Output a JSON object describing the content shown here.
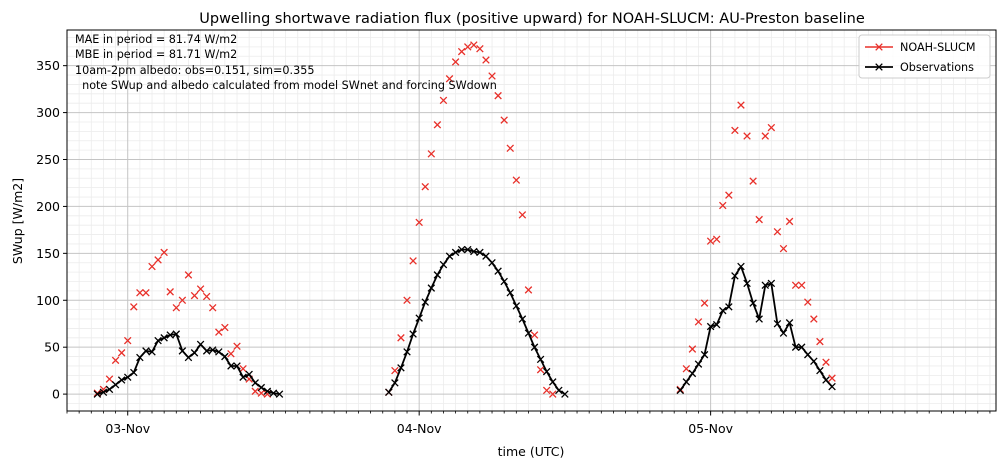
{
  "chart_data": {
    "type": "scatter",
    "title": "Upwelling shortwave radiation flux (positive upward) for NOAH-SLUCM: AU-Preston baseline",
    "xlabel": "time (UTC)",
    "ylabel": "SWup [W/m2]",
    "xlim": [
      "11-02 19:00",
      "11-05 23:30"
    ],
    "ylim": [
      -18,
      388
    ],
    "x_ticks": [
      "03-Nov",
      "04-Nov",
      "05-Nov"
    ],
    "y_ticks": [
      0,
      50,
      100,
      150,
      200,
      250,
      300,
      350
    ],
    "grid": true,
    "legend_position": "top-right",
    "annotations": [
      "MAE in period = 81.74 W/m2",
      "MBE in period = 81.71 W/m2",
      "10am-2pm albedo: obs=0.151, sim=0.355",
      "  note SWup and albedo calculated from model SWnet and forcing SWdown"
    ],
    "series": [
      {
        "name": "NOAH-SLUCM",
        "color": "#e8302a",
        "style": "markers",
        "points": [
          [
            "11-02 21:30",
            1
          ],
          [
            "11-02 22:00",
            5
          ],
          [
            "11-02 22:30",
            16
          ],
          [
            "11-02 23:00",
            36
          ],
          [
            "11-02 23:30",
            44
          ],
          [
            "11-03 00:00",
            57
          ],
          [
            "11-03 00:30",
            93
          ],
          [
            "11-03 01:00",
            108
          ],
          [
            "11-03 01:30",
            108
          ],
          [
            "11-03 02:00",
            136
          ],
          [
            "11-03 02:30",
            143
          ],
          [
            "11-03 03:00",
            151
          ],
          [
            "11-03 03:30",
            109
          ],
          [
            "11-03 04:00",
            92
          ],
          [
            "11-03 04:30",
            100
          ],
          [
            "11-03 05:00",
            127
          ],
          [
            "11-03 05:30",
            105
          ],
          [
            "11-03 06:00",
            112
          ],
          [
            "11-03 06:30",
            104
          ],
          [
            "11-03 07:00",
            92
          ],
          [
            "11-03 07:30",
            66
          ],
          [
            "11-03 08:00",
            71
          ],
          [
            "11-03 08:30",
            43
          ],
          [
            "11-03 09:00",
            51
          ],
          [
            "11-03 09:30",
            27
          ],
          [
            "11-03 10:00",
            16
          ],
          [
            "11-03 10:30",
            3
          ],
          [
            "11-03 11:00",
            1
          ],
          [
            "11-03 11:30",
            0
          ],
          [
            "11-03 21:30",
            2
          ],
          [
            "11-03 22:00",
            25
          ],
          [
            "11-03 22:30",
            60
          ],
          [
            "11-03 23:00",
            100
          ],
          [
            "11-03 23:30",
            142
          ],
          [
            "11-04 00:00",
            183
          ],
          [
            "11-04 00:30",
            221
          ],
          [
            "11-04 01:00",
            256
          ],
          [
            "11-04 01:30",
            287
          ],
          [
            "11-04 02:00",
            313
          ],
          [
            "11-04 02:30",
            336
          ],
          [
            "11-04 03:00",
            354
          ],
          [
            "11-04 03:30",
            365
          ],
          [
            "11-04 04:00",
            370
          ],
          [
            "11-04 04:30",
            372
          ],
          [
            "11-04 05:00",
            368
          ],
          [
            "11-04 05:30",
            356
          ],
          [
            "11-04 06:00",
            339
          ],
          [
            "11-04 06:30",
            318
          ],
          [
            "11-04 07:00",
            292
          ],
          [
            "11-04 07:30",
            262
          ],
          [
            "11-04 08:00",
            228
          ],
          [
            "11-04 08:30",
            191
          ],
          [
            "11-04 09:00",
            111
          ],
          [
            "11-04 09:30",
            63
          ],
          [
            "11-04 10:00",
            26
          ],
          [
            "11-04 10:30",
            4
          ],
          [
            "11-04 11:00",
            0
          ],
          [
            "11-04 21:30",
            5
          ],
          [
            "11-04 22:00",
            27
          ],
          [
            "11-04 22:30",
            48
          ],
          [
            "11-04 23:00",
            77
          ],
          [
            "11-04 23:30",
            97
          ],
          [
            "11-05 00:00",
            163
          ],
          [
            "11-05 00:30",
            165
          ],
          [
            "11-05 01:00",
            201
          ],
          [
            "11-05 01:30",
            212
          ],
          [
            "11-05 02:00",
            281
          ],
          [
            "11-05 02:30",
            308
          ],
          [
            "11-05 03:00",
            275
          ],
          [
            "11-05 03:30",
            227
          ],
          [
            "11-05 04:00",
            186
          ],
          [
            "11-05 04:30",
            275
          ],
          [
            "11-05 05:00",
            284
          ],
          [
            "11-05 05:30",
            173
          ],
          [
            "11-05 06:00",
            155
          ],
          [
            "11-05 06:30",
            184
          ],
          [
            "11-05 07:00",
            116
          ],
          [
            "11-05 07:30",
            116
          ],
          [
            "11-05 08:00",
            98
          ],
          [
            "11-05 08:30",
            80
          ],
          [
            "11-05 09:00",
            56
          ],
          [
            "11-05 09:30",
            34
          ],
          [
            "11-05 10:00",
            17
          ]
        ]
      },
      {
        "name": "Observations",
        "color": "#000000",
        "style": "line-markers",
        "segments": [
          [
            [
              "11-02 21:30",
              0
            ],
            [
              "11-02 22:00",
              2
            ],
            [
              "11-02 22:30",
              5
            ],
            [
              "11-02 23:00",
              10
            ],
            [
              "11-02 23:30",
              15
            ],
            [
              "11-03 00:00",
              18
            ],
            [
              "11-03 00:30",
              23
            ],
            [
              "11-03 01:00",
              39
            ],
            [
              "11-03 01:30",
              46
            ],
            [
              "11-03 02:00",
              45
            ],
            [
              "11-03 02:30",
              57
            ],
            [
              "11-03 03:00",
              60
            ],
            [
              "11-03 03:30",
              63
            ],
            [
              "11-03 04:00",
              64
            ],
            [
              "11-03 04:30",
              46
            ],
            [
              "11-03 05:00",
              39
            ],
            [
              "11-03 05:30",
              44
            ],
            [
              "11-03 06:00",
              53
            ],
            [
              "11-03 06:30",
              46
            ],
            [
              "11-03 07:00",
              47
            ],
            [
              "11-03 07:30",
              45
            ],
            [
              "11-03 08:00",
              40
            ],
            [
              "11-03 08:30",
              30
            ],
            [
              "11-03 09:00",
              30
            ],
            [
              "11-03 09:30",
              18
            ],
            [
              "11-03 10:00",
              21
            ],
            [
              "11-03 10:30",
              12
            ],
            [
              "11-03 11:00",
              7
            ],
            [
              "11-03 11:30",
              3
            ],
            [
              "11-03 12:00",
              1
            ],
            [
              "11-03 12:30",
              0
            ]
          ],
          [
            [
              "11-03 21:30",
              2
            ],
            [
              "11-03 22:00",
              12
            ],
            [
              "11-03 22:30",
              28
            ],
            [
              "11-03 23:00",
              45
            ],
            [
              "11-03 23:30",
              64
            ],
            [
              "11-04 00:00",
              81
            ],
            [
              "11-04 00:30",
              98
            ],
            [
              "11-04 01:00",
              113
            ],
            [
              "11-04 01:30",
              127
            ],
            [
              "11-04 02:00",
              138
            ],
            [
              "11-04 02:30",
              147
            ],
            [
              "11-04 03:00",
              151
            ],
            [
              "11-04 03:30",
              154
            ],
            [
              "11-04 04:00",
              154
            ],
            [
              "11-04 04:30",
              152
            ],
            [
              "11-04 05:00",
              151
            ],
            [
              "11-04 05:30",
              147
            ],
            [
              "11-04 06:00",
              140
            ],
            [
              "11-04 06:30",
              131
            ],
            [
              "11-04 07:00",
              120
            ],
            [
              "11-04 07:30",
              108
            ],
            [
              "11-04 08:00",
              94
            ],
            [
              "11-04 08:30",
              80
            ],
            [
              "11-04 09:00",
              65
            ],
            [
              "11-04 09:30",
              50
            ],
            [
              "11-04 10:00",
              37
            ],
            [
              "11-04 10:30",
              24
            ],
            [
              "11-04 11:00",
              13
            ],
            [
              "11-04 11:30",
              4
            ],
            [
              "11-04 12:00",
              0
            ]
          ],
          [
            [
              "11-04 21:30",
              4
            ],
            [
              "11-04 22:00",
              13
            ],
            [
              "11-04 22:30",
              22
            ],
            [
              "11-04 23:00",
              32
            ],
            [
              "11-04 23:30",
              42
            ],
            [
              "11-05 00:00",
              72
            ],
            [
              "11-05 00:30",
              74
            ],
            [
              "11-05 01:00",
              89
            ],
            [
              "11-05 01:30",
              93
            ],
            [
              "11-05 02:00",
              126
            ],
            [
              "11-05 02:30",
              136
            ],
            [
              "11-05 03:00",
              118
            ],
            [
              "11-05 03:30",
              97
            ],
            [
              "11-05 04:00",
              80
            ],
            [
              "11-05 04:30",
              116
            ],
            [
              "11-05 05:00",
              118
            ],
            [
              "11-05 05:30",
              75
            ],
            [
              "11-05 06:00",
              65
            ],
            [
              "11-05 06:30",
              76
            ],
            [
              "11-05 07:00",
              50
            ],
            [
              "11-05 07:30",
              50
            ],
            [
              "11-05 08:00",
              42
            ],
            [
              "11-05 08:30",
              35
            ],
            [
              "11-05 09:00",
              25
            ],
            [
              "11-05 09:30",
              15
            ],
            [
              "11-05 10:00",
              8
            ]
          ]
        ]
      }
    ]
  }
}
